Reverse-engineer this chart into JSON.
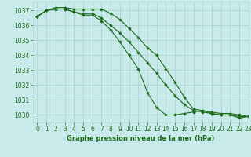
{
  "background_color": "#c8eaea",
  "grid_color": "#b0d4d4",
  "line_color": "#1a6b1a",
  "marker_color": "#1a6b1a",
  "title": "Graphe pression niveau de la mer (hPa)",
  "xlim": [
    -0.5,
    23
  ],
  "ylim": [
    1029.5,
    1037.6
  ],
  "yticks": [
    1030,
    1031,
    1032,
    1033,
    1034,
    1035,
    1036,
    1037
  ],
  "xticks": [
    0,
    1,
    2,
    3,
    4,
    5,
    6,
    7,
    8,
    9,
    10,
    11,
    12,
    13,
    14,
    15,
    16,
    17,
    18,
    19,
    20,
    21,
    22,
    23
  ],
  "series": [
    [
      1036.6,
      1037.0,
      1037.1,
      1037.1,
      1036.9,
      1036.8,
      1036.8,
      1036.5,
      1036.0,
      1035.5,
      1034.9,
      1034.2,
      1033.5,
      1032.8,
      1032.0,
      1031.3,
      1030.7,
      1030.3,
      1030.2,
      1030.1,
      1030.0,
      1030.0,
      1029.9,
      1029.9
    ],
    [
      1036.6,
      1037.0,
      1037.1,
      1037.1,
      1036.9,
      1036.7,
      1036.7,
      1036.3,
      1035.7,
      1034.9,
      1034.0,
      1033.1,
      1031.5,
      1030.5,
      1030.0,
      1030.0,
      1030.1,
      1030.2,
      1030.3,
      1030.1,
      1030.0,
      1030.0,
      1029.8,
      1029.9
    ],
    [
      1036.6,
      1037.0,
      1037.2,
      1037.2,
      1037.1,
      1037.1,
      1037.1,
      1037.1,
      1036.8,
      1036.4,
      1035.8,
      1035.2,
      1034.5,
      1034.0,
      1033.1,
      1032.2,
      1031.2,
      1030.4,
      1030.3,
      1030.2,
      1030.1,
      1030.1,
      1030.0,
      1029.9
    ]
  ]
}
